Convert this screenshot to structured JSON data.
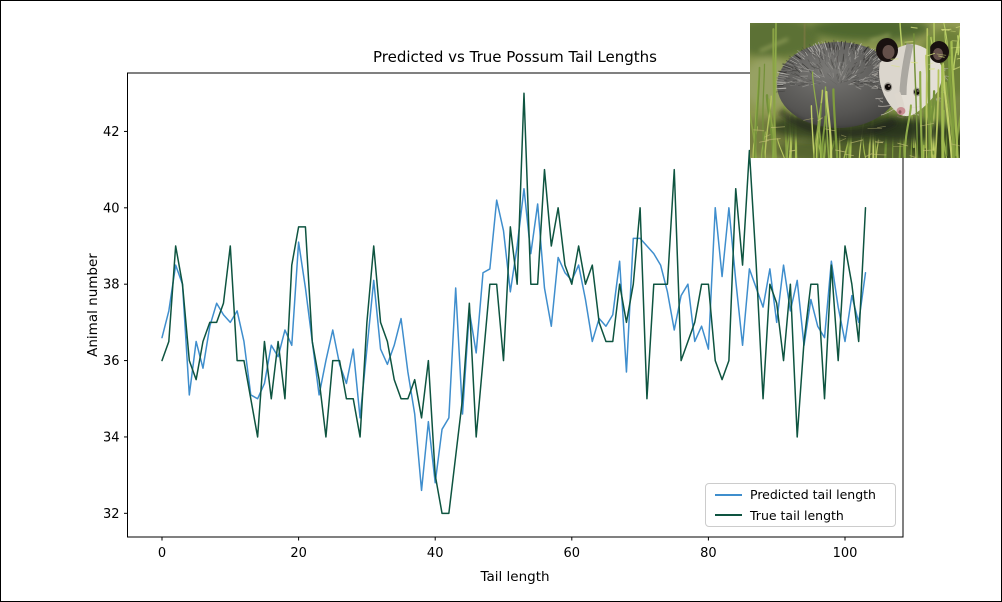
{
  "figure": {
    "background": "#ffffff",
    "border_color": "#000000"
  },
  "chart_data": {
    "type": "line",
    "title": "Predicted vs True Possum Tail Lengths",
    "xlabel": "Tail length",
    "ylabel": "Animal number",
    "xticks": [
      0,
      20,
      40,
      60,
      80,
      100
    ],
    "yticks": [
      32,
      34,
      36,
      38,
      40,
      42
    ],
    "xlim": [
      -5.05,
      108.49
    ],
    "ylim": [
      31.38,
      43.53
    ],
    "grid": false,
    "legend_position": "lower right",
    "x": [
      0,
      1,
      2,
      3,
      4,
      5,
      6,
      7,
      8,
      9,
      10,
      11,
      12,
      13,
      14,
      15,
      16,
      17,
      18,
      19,
      20,
      21,
      22,
      23,
      24,
      25,
      26,
      27,
      28,
      29,
      30,
      31,
      32,
      33,
      34,
      35,
      36,
      37,
      38,
      39,
      40,
      41,
      42,
      43,
      44,
      45,
      46,
      47,
      48,
      49,
      50,
      51,
      52,
      53,
      54,
      55,
      56,
      57,
      58,
      59,
      60,
      61,
      62,
      63,
      64,
      65,
      66,
      67,
      68,
      69,
      70,
      71,
      72,
      73,
      74,
      75,
      76,
      77,
      78,
      79,
      80,
      81,
      82,
      83,
      84,
      85,
      86,
      87,
      88,
      89,
      90,
      91,
      92,
      93,
      94,
      95,
      96,
      97,
      98,
      99,
      100,
      101,
      102,
      103
    ],
    "series": [
      {
        "name": "Predicted tail length",
        "color": "#3f8ecd",
        "values": [
          36.6,
          37.3,
          38.5,
          38.0,
          35.1,
          36.5,
          35.8,
          36.9,
          37.5,
          37.2,
          37.0,
          37.3,
          36.5,
          35.1,
          35.0,
          35.4,
          36.4,
          36.1,
          36.8,
          36.4,
          39.1,
          37.9,
          36.5,
          35.1,
          36.0,
          36.8,
          35.9,
          35.4,
          36.3,
          34.5,
          36.3,
          38.1,
          36.3,
          35.9,
          36.4,
          37.1,
          35.7,
          34.6,
          32.6,
          34.4,
          32.8,
          34.2,
          34.5,
          37.9,
          34.6,
          37.3,
          36.2,
          38.3,
          38.4,
          40.2,
          39.4,
          37.8,
          39.0,
          40.5,
          38.8,
          40.1,
          37.9,
          36.9,
          38.7,
          38.3,
          38.1,
          38.5,
          37.6,
          36.5,
          37.1,
          36.9,
          37.2,
          38.6,
          35.7,
          39.2,
          39.2,
          39.0,
          38.8,
          38.5,
          37.8,
          36.8,
          37.7,
          38.0,
          36.5,
          36.9,
          36.3,
          40.0,
          38.2,
          40.0,
          38.1,
          36.4,
          38.4,
          37.9,
          37.4,
          38.4,
          37.0,
          38.5,
          37.3,
          38.1,
          36.4,
          37.6,
          36.9,
          36.6,
          38.6,
          37.4,
          36.5,
          37.7,
          37.0,
          38.3
        ]
      },
      {
        "name": "True tail length",
        "color": "#0e5440",
        "values": [
          36.0,
          36.5,
          39.0,
          38.0,
          36.0,
          35.5,
          36.5,
          37.0,
          37.0,
          37.5,
          39.0,
          36.0,
          36.0,
          35.0,
          34.0,
          36.5,
          35.0,
          36.5,
          35.0,
          38.5,
          39.5,
          39.5,
          36.5,
          35.5,
          34.0,
          36.0,
          36.0,
          35.0,
          35.0,
          34.0,
          37.0,
          39.0,
          37.0,
          36.5,
          35.5,
          35.0,
          35.0,
          35.5,
          34.5,
          36.0,
          33.0,
          32.0,
          32.0,
          33.5,
          35.0,
          37.5,
          34.0,
          36.0,
          38.0,
          38.0,
          36.0,
          39.5,
          38.0,
          43.0,
          38.0,
          38.0,
          41.0,
          39.0,
          40.0,
          38.5,
          38.0,
          39.0,
          38.0,
          38.5,
          37.0,
          36.5,
          36.5,
          38.0,
          37.0,
          38.0,
          40.0,
          35.0,
          38.0,
          38.0,
          38.0,
          41.0,
          36.0,
          36.5,
          37.0,
          38.0,
          38.0,
          36.0,
          35.5,
          36.0,
          40.5,
          38.5,
          41.5,
          38.5,
          35.0,
          38.0,
          37.5,
          36.0,
          38.0,
          34.0,
          36.5,
          38.0,
          38.0,
          35.0,
          38.5,
          36.0,
          39.0,
          38.0,
          36.5,
          40.0
        ]
      }
    ]
  },
  "legend": {
    "items": [
      {
        "label": "Predicted tail length",
        "color": "#3f8ecd"
      },
      {
        "label": "True tail length",
        "color": "#0e5440"
      }
    ]
  },
  "inset_photo": {
    "label": "possum-photo"
  }
}
